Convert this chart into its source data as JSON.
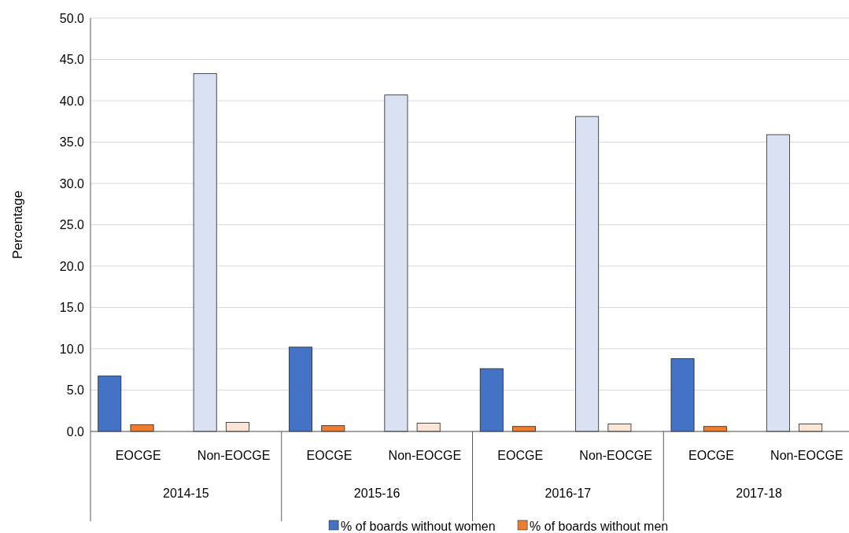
{
  "chart_data": {
    "type": "bar",
    "ylabel": "Percentage",
    "categories": [
      "EOCGE",
      "Non-EOCGE",
      "EOCGE",
      "Non-EOCGE",
      "EOCGE",
      "Non-EOCGE",
      "EOCGE",
      "Non-EOCGE"
    ],
    "annotations": [
      "2014-15",
      "2015-16",
      "2016-17",
      "2017-18"
    ],
    "series": [
      {
        "name": "% of boards without women",
        "color": "#4472c4",
        "colors": [
          "#4472c4",
          "#d9e1f2",
          "#4472c4",
          "#d9e1f2",
          "#4472c4",
          "#d9e1f2",
          "#4472c4",
          "#d9e1f2"
        ],
        "values": [
          6.7,
          43.3,
          10.2,
          40.7,
          7.6,
          38.1,
          8.8,
          35.9
        ]
      },
      {
        "name": "% of boards without men",
        "color": "#ed7d31",
        "colors": [
          "#ed7d31",
          "#fbe5d6",
          "#ed7d31",
          "#fbe5d6",
          "#ed7d31",
          "#fbe5d6",
          "#ed7d31",
          "#fbe5d6"
        ],
        "values": [
          0.8,
          1.1,
          0.7,
          1.0,
          0.6,
          0.9,
          0.6,
          0.9
        ]
      }
    ],
    "ylim": [
      0,
      50
    ],
    "yticks": [
      {
        "value": 0,
        "label": "0.0"
      },
      {
        "value": 5,
        "label": "5.0"
      },
      {
        "value": 10,
        "label": "10.0"
      },
      {
        "value": 15,
        "label": "15.0"
      },
      {
        "value": 20,
        "label": "20.0"
      },
      {
        "value": 25,
        "label": "25.0"
      },
      {
        "value": 30,
        "label": "30.0"
      },
      {
        "value": 35,
        "label": "35.0"
      },
      {
        "value": 40,
        "label": "40.0"
      },
      {
        "value": 45,
        "label": "45.0"
      },
      {
        "value": 50,
        "label": "50.0"
      }
    ],
    "grid": "y",
    "legend": "bottom"
  }
}
